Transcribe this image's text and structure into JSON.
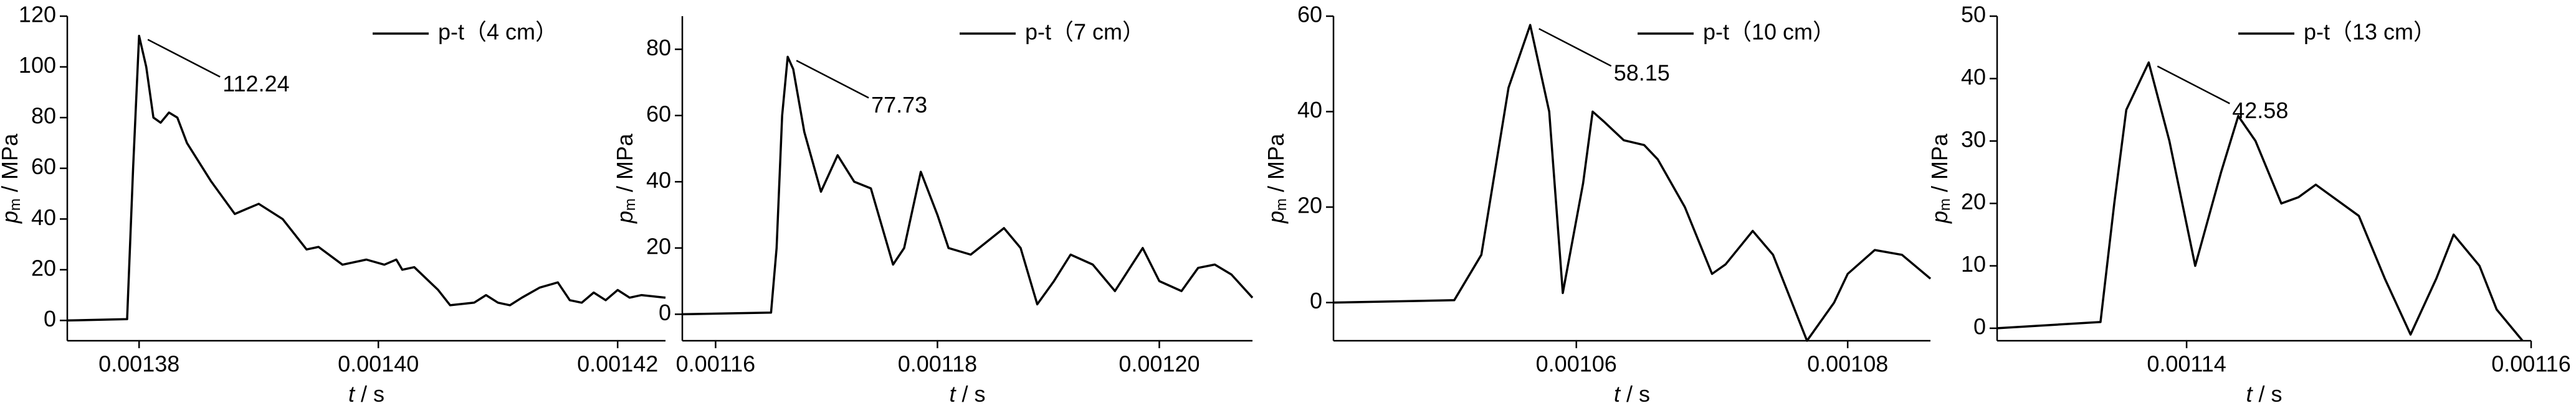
{
  "chart_data": [
    {
      "type": "line",
      "x": [
        0.001374,
        0.001379,
        0.0013795,
        0.00138,
        0.0013806,
        0.0013812,
        0.0013818,
        0.0013825,
        0.0013832,
        0.001384,
        0.001386,
        0.001388,
        0.001389,
        0.00139,
        0.001392,
        0.001393,
        0.001394,
        0.001395,
        0.001397,
        0.001399,
        0.0014005,
        0.0014015,
        0.001402,
        0.001403,
        0.001405,
        0.001406,
        0.001408,
        0.001409,
        0.00141,
        0.001411,
        0.001412,
        0.0014135,
        0.001415,
        0.001416,
        0.001417,
        0.001418,
        0.001419,
        0.00142,
        0.001421,
        0.001422,
        0.001424
      ],
      "series": [
        {
          "name": "p-t（4 cm）",
          "color": "#000000",
          "values": [
            0,
            0.5,
            60,
            112.24,
            100,
            80,
            78,
            82,
            80,
            70,
            55,
            42,
            44,
            46,
            40,
            34,
            28,
            29,
            22,
            24,
            22,
            24,
            20,
            21,
            12,
            6,
            7,
            10,
            7,
            6,
            9,
            13,
            15,
            8,
            7,
            11,
            8,
            12,
            9,
            10,
            9
          ]
        }
      ],
      "xlim": [
        0.001374,
        0.001424
      ],
      "xticks": [
        0.00138,
        {
          "value": 0.0014,
          "label": "0.00140"
        },
        0.00142
      ],
      "ylim": [
        -8,
        120
      ],
      "yticks": [
        0,
        20,
        40,
        60,
        80,
        100,
        120
      ],
      "xlabel": {
        "symbol": "t",
        "unit": " / s"
      },
      "ylabel": {
        "symbol": "p",
        "subscript": "m",
        "unit": " / MPa"
      },
      "annotation": "112.24",
      "legend": "upper right"
    },
    {
      "type": "line",
      "x": [
        0.001157,
        0.001165,
        0.0011655,
        0.001166,
        0.0011665,
        0.001167,
        0.001168,
        0.0011695,
        0.001171,
        0.0011725,
        0.001174,
        0.001176,
        0.001177,
        0.0011785,
        0.00118,
        0.001181,
        0.001183,
        0.0011845,
        0.001186,
        0.0011875,
        0.001189,
        0.0011905,
        0.001192,
        0.001194,
        0.001196,
        0.0011985,
        0.0012,
        0.001202,
        0.0012035,
        0.001205,
        0.0012065,
        0.0012084
      ],
      "series": [
        {
          "name": "p-t（7 cm）",
          "color": "#000000",
          "values": [
            0,
            0.5,
            20,
            60,
            77.73,
            74,
            55,
            37,
            48,
            40,
            38,
            15,
            20,
            43,
            30,
            20,
            18,
            22,
            26,
            20,
            3,
            10,
            18,
            15,
            7,
            20,
            10,
            7,
            14,
            15,
            12,
            5
          ]
        }
      ],
      "xlim": [
        0.001157,
        0.0012084
      ],
      "xticks": [
        0.00116,
        0.00118,
        {
          "value": 0.0012,
          "label": "0.00120"
        }
      ],
      "ylim": [
        -8,
        90
      ],
      "yticks": [
        0,
        20,
        40,
        60,
        80
      ],
      "xlabel": {
        "symbol": "t",
        "unit": " / s"
      },
      "ylabel": {
        "symbol": "p",
        "subscript": "m",
        "unit": " / MPa"
      },
      "annotation": "77.73",
      "legend": "upper right"
    },
    {
      "type": "line",
      "x": [
        0.0010421,
        0.001051,
        0.001053,
        0.001055,
        0.0010566,
        0.001058,
        0.001059,
        0.0010605,
        0.0010612,
        0.001062,
        0.0010635,
        0.001065,
        0.001066,
        0.001068,
        0.00107,
        0.001071,
        0.001073,
        0.0010745,
        0.001077,
        0.001079,
        0.00108,
        0.001082,
        0.001084,
        0.0010861
      ],
      "series": [
        {
          "name": "p-t（10 cm）",
          "color": "#000000",
          "values": [
            0,
            0.5,
            10,
            45,
            58.15,
            40,
            2,
            25,
            40,
            38,
            34,
            33,
            30,
            20,
            6,
            8,
            15,
            10,
            -8,
            0,
            6,
            11,
            10,
            5
          ]
        }
      ],
      "xlim": [
        0.0010421,
        0.0010861
      ],
      "xticks": [
        0.00106,
        0.00108
      ],
      "ylim": [
        -8,
        60
      ],
      "yticks": [
        0,
        20,
        40,
        60
      ],
      "xlabel": {
        "symbol": "t",
        "unit": " / s"
      },
      "ylabel": {
        "symbol": "p",
        "subscript": "m",
        "unit": " / MPa"
      },
      "annotation": "58.15",
      "legend": "upper right"
    },
    {
      "type": "line",
      "x": [
        0.001129,
        0.001135,
        0.0011358,
        0.0011365,
        0.0011378,
        0.001139,
        0.0011405,
        0.001142,
        0.001143,
        0.001144,
        0.0011455,
        0.0011465,
        0.0011475,
        0.00115,
        0.0011515,
        0.001153,
        0.0011545,
        0.0011555,
        0.001157,
        0.001158,
        0.0011595
      ],
      "series": [
        {
          "name": "p-t（13 cm）",
          "color": "#000000",
          "values": [
            0,
            1,
            20,
            35,
            42.58,
            30,
            10,
            25,
            34,
            30,
            20,
            21,
            23,
            18,
            8,
            -1,
            8,
            15,
            10,
            3,
            -2
          ]
        }
      ],
      "xlim": [
        0.001129,
        0.00116
      ],
      "xticks": [
        0.00114,
        0.00116
      ],
      "ylim": [
        -2,
        50
      ],
      "yticks": [
        0,
        10,
        20,
        30,
        40,
        50
      ],
      "xlabel": {
        "symbol": "t",
        "unit": " / s"
      },
      "ylabel": {
        "symbol": "p",
        "subscript": "m",
        "unit": " / MPa"
      },
      "annotation": "42.58",
      "legend": "upper right"
    }
  ]
}
